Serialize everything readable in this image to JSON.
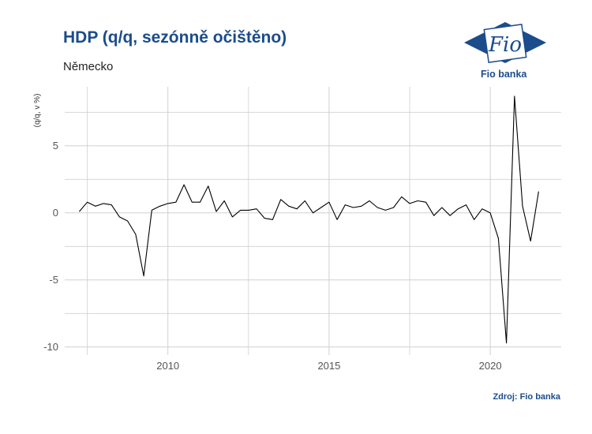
{
  "header": {
    "title": "HDP (q/q, sezónně očištěno)",
    "subtitle": "Německo"
  },
  "logo": {
    "mark_text": "Fio",
    "name": "Fio banka"
  },
  "footer": {
    "source": "Zdroj: Fio banka"
  },
  "colors": {
    "brand": "#1b4c8c",
    "line": "#000000",
    "grid": "#d0d0d0"
  },
  "chart_data": {
    "type": "line",
    "title": "HDP (q/q, sezónně očištěno)",
    "subtitle": "Německo",
    "ylabel": "(q/q, v %)",
    "xlabel": "",
    "grid": true,
    "xlim": [
      2006.8,
      2022.2
    ],
    "ylim": [
      -10.6,
      9.4
    ],
    "x_ticks": [
      2010,
      2015,
      2020
    ],
    "x_tick_labels": [
      "2010",
      "2015",
      "2020"
    ],
    "y_ticks": [
      -10,
      -5,
      0,
      5
    ],
    "y_tick_labels": [
      "-10",
      "-5",
      "0",
      "5"
    ],
    "series": [
      {
        "x": [
          2007.25,
          2007.5,
          2007.75,
          2008.0,
          2008.25,
          2008.5,
          2008.75,
          2009.0,
          2009.25,
          2009.5,
          2009.75,
          2010.0,
          2010.25,
          2010.5,
          2010.75,
          2011.0,
          2011.25,
          2011.5,
          2011.75,
          2012.0,
          2012.25,
          2012.5,
          2012.75,
          2013.0,
          2013.25,
          2013.5,
          2013.75,
          2014.0,
          2014.25,
          2014.5,
          2014.75,
          2015.0,
          2015.25,
          2015.5,
          2015.75,
          2016.0,
          2016.25,
          2016.5,
          2016.75,
          2017.0,
          2017.25,
          2017.5,
          2017.75,
          2018.0,
          2018.25,
          2018.5,
          2018.75,
          2019.0,
          2019.25,
          2019.5,
          2019.75,
          2020.0,
          2020.25,
          2020.5,
          2020.75,
          2021.0,
          2021.25,
          2021.5
        ],
        "values": [
          0.1,
          0.8,
          0.5,
          0.7,
          0.6,
          -0.3,
          -0.6,
          -1.6,
          -4.7,
          0.2,
          0.5,
          0.7,
          0.8,
          2.1,
          0.8,
          0.8,
          2.0,
          0.1,
          0.9,
          -0.3,
          0.2,
          0.2,
          0.3,
          -0.4,
          -0.5,
          1.0,
          0.5,
          0.3,
          0.9,
          0.0,
          0.4,
          0.8,
          -0.5,
          0.6,
          0.4,
          0.5,
          0.9,
          0.4,
          0.2,
          0.4,
          1.2,
          0.7,
          0.9,
          0.8,
          -0.2,
          0.4,
          -0.2,
          0.3,
          0.6,
          -0.5,
          0.3,
          0.0,
          -1.9,
          -9.7,
          8.7,
          0.5,
          -2.1,
          1.6
        ]
      }
    ]
  }
}
